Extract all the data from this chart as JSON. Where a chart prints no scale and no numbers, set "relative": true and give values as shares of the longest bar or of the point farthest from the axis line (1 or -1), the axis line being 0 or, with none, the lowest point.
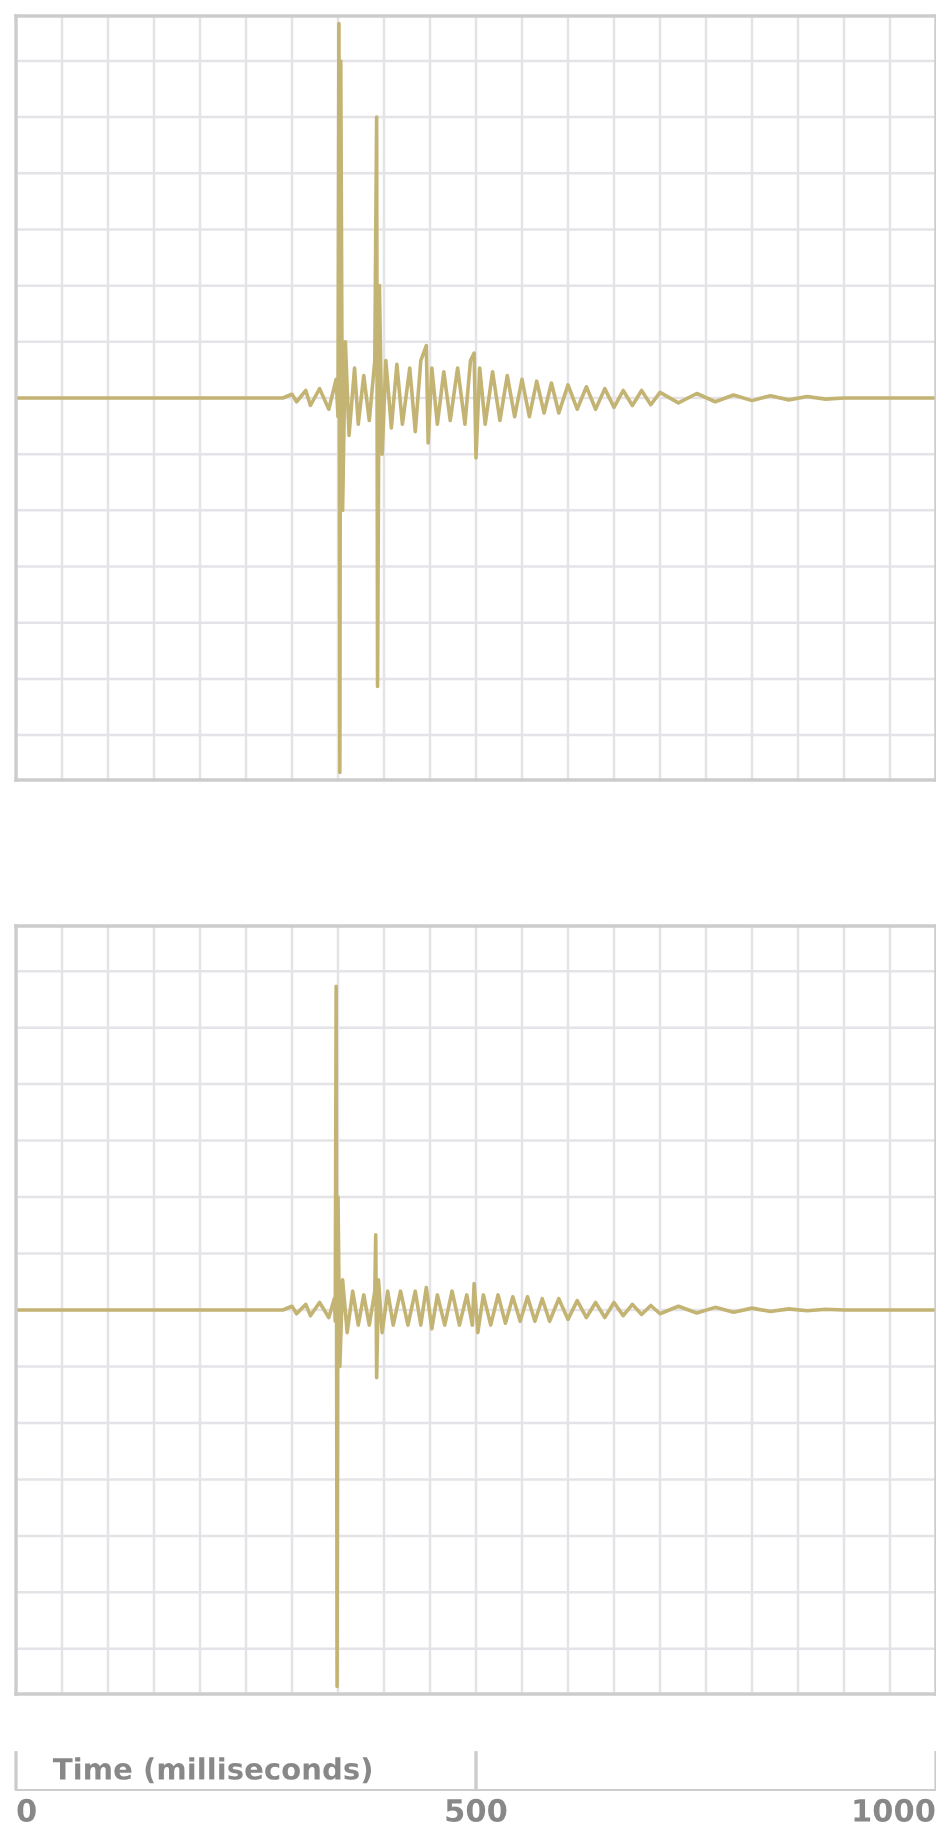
{
  "chart_data": [
    {
      "type": "line",
      "relative": true,
      "color": "#c4b474",
      "grid": true,
      "tick_labels": false,
      "xlim": [
        0,
        1000
      ],
      "xticks": [
        {
          "value": 0,
          "label": null
        },
        {
          "value": 50,
          "label": null
        },
        {
          "value": 100,
          "label": null
        },
        {
          "value": 150,
          "label": null
        },
        {
          "value": 200,
          "label": null
        },
        {
          "value": 250,
          "label": null
        },
        {
          "value": 300,
          "label": null
        },
        {
          "value": 350,
          "label": null
        },
        {
          "value": 400,
          "label": null
        },
        {
          "value": 450,
          "label": null
        },
        {
          "value": 500,
          "label": null
        },
        {
          "value": 550,
          "label": null
        },
        {
          "value": 600,
          "label": null
        },
        {
          "value": 650,
          "label": null
        },
        {
          "value": 700,
          "label": null
        },
        {
          "value": 750,
          "label": null
        },
        {
          "value": 800,
          "label": null
        },
        {
          "value": 850,
          "label": null
        },
        {
          "value": 900,
          "label": null
        },
        {
          "value": 950,
          "label": null
        },
        {
          "value": 1000,
          "label": null
        }
      ],
      "x": [
        0,
        290,
        300,
        305,
        315,
        320,
        330,
        340,
        348,
        350,
        351,
        352,
        353,
        355,
        358,
        362,
        368,
        372,
        378,
        384,
        390,
        392,
        393,
        395,
        398,
        402,
        408,
        414,
        420,
        428,
        434,
        440,
        446,
        448,
        452,
        458,
        465,
        472,
        480,
        488,
        494,
        498,
        500,
        504,
        510,
        518,
        526,
        534,
        542,
        550,
        558,
        566,
        574,
        582,
        590,
        600,
        610,
        620,
        630,
        640,
        650,
        660,
        670,
        680,
        690,
        700,
        720,
        740,
        760,
        780,
        800,
        820,
        840,
        860,
        880,
        900,
        1000
      ],
      "values": [
        0,
        0,
        0.01,
        -0.01,
        0.02,
        -0.02,
        0.025,
        -0.03,
        0.05,
        -0.05,
        1.0,
        -1.0,
        0.9,
        -0.3,
        0.15,
        -0.1,
        0.08,
        -0.07,
        0.06,
        -0.06,
        0.1,
        0.75,
        -0.77,
        0.3,
        -0.15,
        0.1,
        -0.08,
        0.09,
        -0.07,
        0.08,
        -0.09,
        0.1,
        0.14,
        -0.12,
        0.08,
        -0.07,
        0.07,
        -0.06,
        0.08,
        -0.07,
        0.1,
        0.12,
        -0.16,
        0.08,
        -0.07,
        0.07,
        -0.06,
        0.06,
        -0.05,
        0.05,
        -0.05,
        0.045,
        -0.04,
        0.04,
        -0.04,
        0.035,
        -0.03,
        0.03,
        -0.03,
        0.025,
        -0.025,
        0.02,
        -0.02,
        0.02,
        -0.018,
        0.015,
        -0.013,
        0.012,
        -0.01,
        0.008,
        -0.007,
        0.006,
        -0.005,
        0.004,
        -0.003,
        0,
        0
      ]
    },
    {
      "type": "line",
      "relative": true,
      "color": "#c4b474",
      "grid": true,
      "tick_labels": "x",
      "xlim": [
        0,
        1000
      ],
      "xlabel": "Time (milliseconds)",
      "xticks": [
        0,
        {
          "value": 50,
          "label": null
        },
        {
          "value": 100,
          "label": null
        },
        {
          "value": 150,
          "label": null
        },
        {
          "value": 200,
          "label": null
        },
        {
          "value": 250,
          "label": null
        },
        {
          "value": 300,
          "label": null
        },
        {
          "value": 350,
          "label": null
        },
        {
          "value": 400,
          "label": null
        },
        {
          "value": 450,
          "label": null
        },
        500,
        {
          "value": 550,
          "label": null
        },
        {
          "value": 600,
          "label": null
        },
        {
          "value": 650,
          "label": null
        },
        {
          "value": 700,
          "label": null
        },
        {
          "value": 750,
          "label": null
        },
        {
          "value": 800,
          "label": null
        },
        {
          "value": 850,
          "label": null
        },
        {
          "value": 900,
          "label": null
        },
        {
          "value": 950,
          "label": null
        },
        1000
      ],
      "x": [
        0,
        290,
        300,
        305,
        315,
        320,
        330,
        340,
        346,
        347,
        348,
        349,
        350,
        352,
        355,
        360,
        366,
        372,
        378,
        384,
        390,
        391,
        392,
        394,
        398,
        404,
        410,
        418,
        426,
        434,
        440,
        446,
        452,
        458,
        466,
        474,
        482,
        490,
        496,
        498,
        502,
        508,
        516,
        524,
        532,
        540,
        548,
        556,
        564,
        572,
        580,
        590,
        600,
        610,
        620,
        630,
        640,
        650,
        660,
        670,
        680,
        690,
        700,
        720,
        740,
        760,
        780,
        800,
        820,
        840,
        860,
        880,
        900,
        1000
      ],
      "values": [
        0,
        0,
        0.01,
        -0.01,
        0.015,
        -0.015,
        0.02,
        -0.02,
        0.03,
        -0.03,
        0.86,
        -1.0,
        0.3,
        -0.15,
        0.08,
        -0.06,
        0.05,
        -0.04,
        0.04,
        -0.04,
        0.05,
        0.2,
        -0.18,
        0.08,
        -0.06,
        0.05,
        -0.04,
        0.05,
        -0.04,
        0.05,
        -0.04,
        0.06,
        -0.05,
        0.04,
        -0.04,
        0.05,
        -0.04,
        0.04,
        -0.04,
        0.07,
        -0.06,
        0.04,
        -0.04,
        0.04,
        -0.035,
        0.035,
        -0.03,
        0.035,
        -0.03,
        0.03,
        -0.03,
        0.03,
        -0.025,
        0.025,
        -0.02,
        0.02,
        -0.02,
        0.02,
        -0.015,
        0.015,
        -0.012,
        0.012,
        -0.01,
        0.01,
        -0.008,
        0.007,
        -0.006,
        0.005,
        -0.004,
        0.003,
        -0.002,
        0.002,
        0,
        0
      ]
    }
  ]
}
